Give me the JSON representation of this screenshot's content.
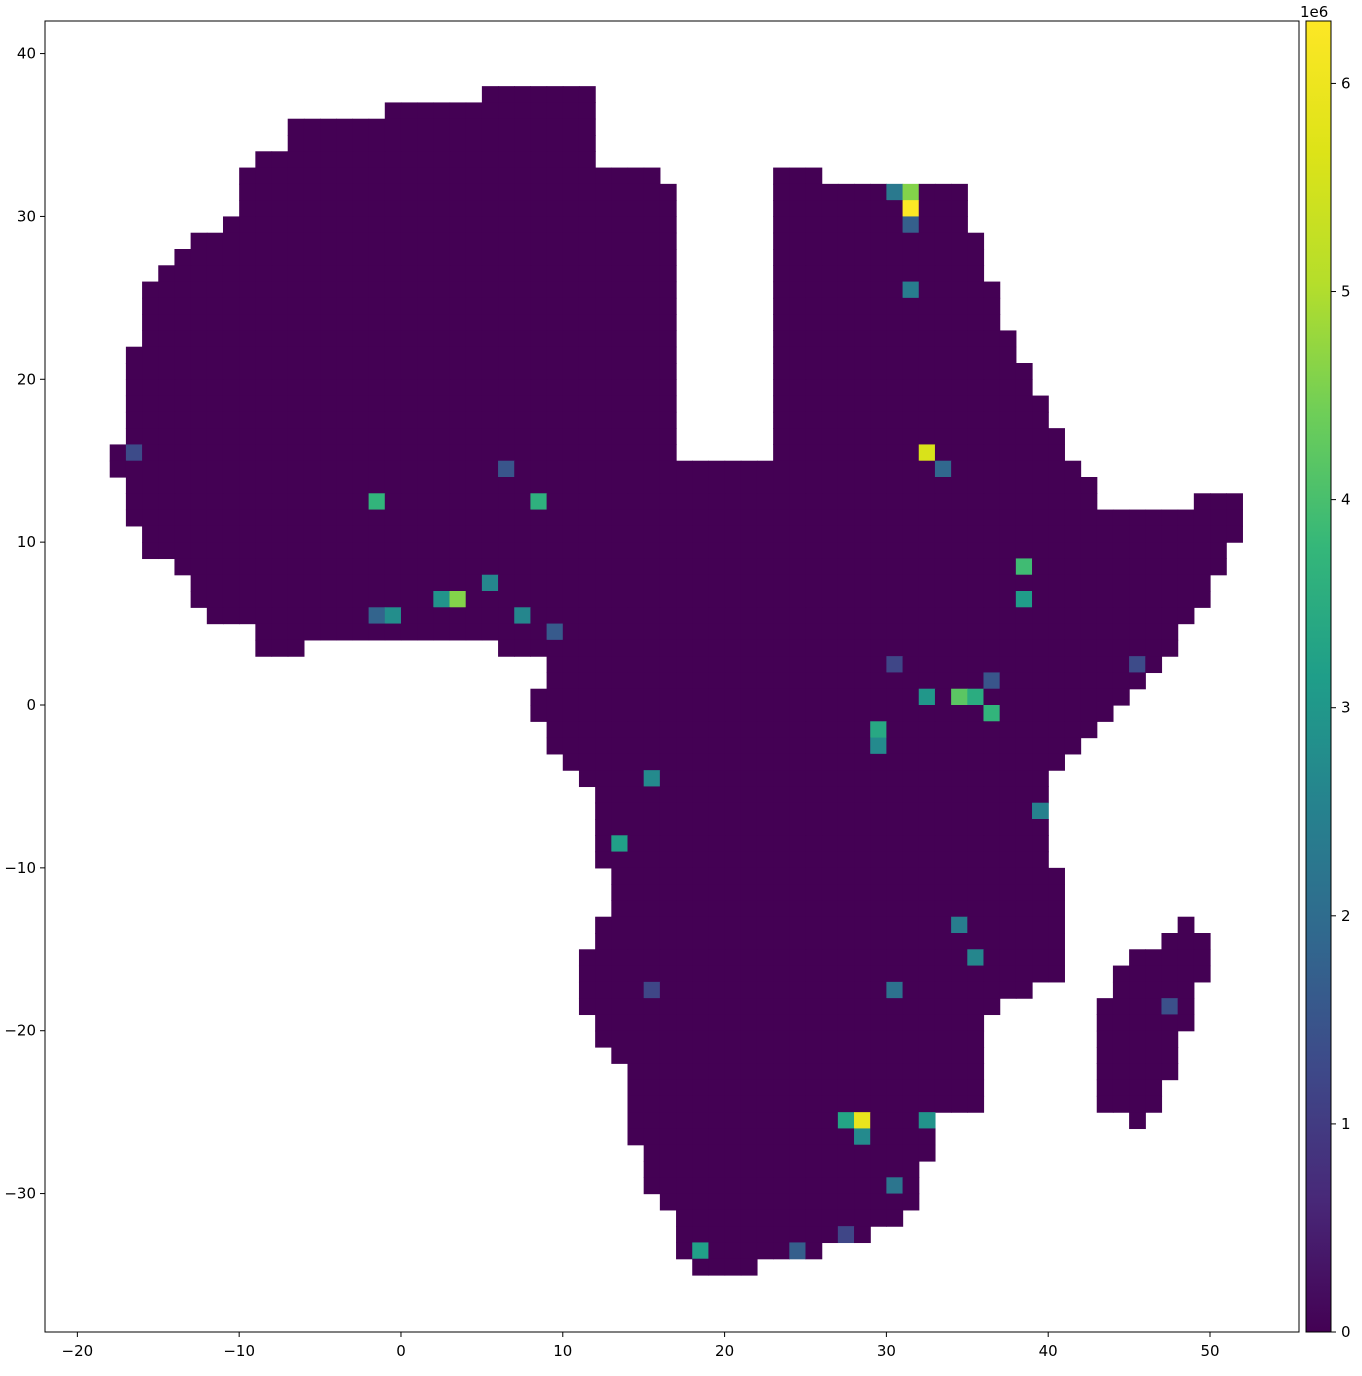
{
  "chart_data": {
    "type": "heatmap",
    "title": "",
    "xlabel": "",
    "ylabel": "",
    "xlim": [
      -22,
      55.5
    ],
    "ylim": [
      -38.5,
      42
    ],
    "x_ticks": [
      -20,
      -10,
      0,
      10,
      20,
      30,
      40,
      50
    ],
    "x_tick_labels": [
      "−20",
      "−10",
      "0",
      "10",
      "20",
      "30",
      "40",
      "50"
    ],
    "y_ticks": [
      40,
      30,
      20,
      10,
      0,
      -10,
      -20,
      -30
    ],
    "y_tick_labels": [
      "40",
      "30",
      "20",
      "10",
      "0",
      "−10",
      "−20",
      "−30"
    ],
    "grid": false,
    "colormap": "viridis",
    "colorbar": {
      "min": 0,
      "max": 6300000,
      "ticks": [
        0,
        1000000,
        2000000,
        3000000,
        4000000,
        5000000,
        6000000
      ],
      "tick_labels": [
        "0",
        "1",
        "2",
        "3",
        "4",
        "5",
        "6"
      ],
      "offset_label": "1e6"
    },
    "cell_size_deg": 1,
    "background_value": 0,
    "land_rows": [
      {
        "lat": 37,
        "lon_ranges": [
          [
            5,
            11
          ]
        ]
      },
      {
        "lat": 36,
        "lon_ranges": [
          [
            -1,
            11
          ]
        ]
      },
      {
        "lat": 35,
        "lon_ranges": [
          [
            -7,
            11
          ]
        ]
      },
      {
        "lat": 34,
        "lon_ranges": [
          [
            -7,
            11
          ]
        ]
      },
      {
        "lat": 33,
        "lon_ranges": [
          [
            -9,
            11
          ]
        ]
      },
      {
        "lat": 32,
        "lon_ranges": [
          [
            -10,
            15
          ],
          [
            23,
            25
          ]
        ]
      },
      {
        "lat": 31,
        "lon_ranges": [
          [
            -10,
            16
          ],
          [
            23,
            34
          ]
        ]
      },
      {
        "lat": 30,
        "lon_ranges": [
          [
            -10,
            16
          ],
          [
            23,
            34
          ]
        ]
      },
      {
        "lat": 29,
        "lon_ranges": [
          [
            -11,
            16
          ],
          [
            23,
            34
          ]
        ]
      },
      {
        "lat": 28,
        "lon_ranges": [
          [
            -13,
            16
          ],
          [
            23,
            35
          ]
        ]
      },
      {
        "lat": 27,
        "lon_ranges": [
          [
            -14,
            16
          ],
          [
            23,
            35
          ]
        ]
      },
      {
        "lat": 26,
        "lon_ranges": [
          [
            -15,
            16
          ],
          [
            23,
            35
          ]
        ]
      },
      {
        "lat": 25,
        "lon_ranges": [
          [
            -16,
            16
          ],
          [
            23,
            36
          ]
        ]
      },
      {
        "lat": 24,
        "lon_ranges": [
          [
            -16,
            16
          ],
          [
            23,
            36
          ]
        ]
      },
      {
        "lat": 23,
        "lon_ranges": [
          [
            -16,
            16
          ],
          [
            23,
            36
          ]
        ]
      },
      {
        "lat": 22,
        "lon_ranges": [
          [
            -16,
            16
          ],
          [
            23,
            37
          ]
        ]
      },
      {
        "lat": 21,
        "lon_ranges": [
          [
            -17,
            16
          ],
          [
            23,
            37
          ]
        ]
      },
      {
        "lat": 20,
        "lon_ranges": [
          [
            -17,
            16
          ],
          [
            23,
            38
          ]
        ]
      },
      {
        "lat": 19,
        "lon_ranges": [
          [
            -17,
            16
          ],
          [
            23,
            38
          ]
        ]
      },
      {
        "lat": 18,
        "lon_ranges": [
          [
            -17,
            16
          ],
          [
            23,
            39
          ]
        ]
      },
      {
        "lat": 17,
        "lon_ranges": [
          [
            -17,
            16
          ],
          [
            23,
            39
          ]
        ]
      },
      {
        "lat": 16,
        "lon_ranges": [
          [
            -17,
            16
          ],
          [
            23,
            40
          ]
        ]
      },
      {
        "lat": 15,
        "lon_ranges": [
          [
            -18,
            16
          ],
          [
            23,
            40
          ]
        ]
      },
      {
        "lat": 14,
        "lon_ranges": [
          [
            -18,
            41
          ]
        ]
      },
      {
        "lat": 13,
        "lon_ranges": [
          [
            -17,
            42
          ]
        ]
      },
      {
        "lat": 12,
        "lon_ranges": [
          [
            -17,
            42
          ],
          [
            49,
            51
          ]
        ]
      },
      {
        "lat": 11,
        "lon_ranges": [
          [
            -17,
            51
          ]
        ]
      },
      {
        "lat": 10,
        "lon_ranges": [
          [
            -16,
            51
          ]
        ]
      },
      {
        "lat": 9,
        "lon_ranges": [
          [
            -16,
            50
          ]
        ]
      },
      {
        "lat": 8,
        "lon_ranges": [
          [
            -14,
            50
          ]
        ]
      },
      {
        "lat": 7,
        "lon_ranges": [
          [
            -13,
            49
          ]
        ]
      },
      {
        "lat": 6,
        "lon_ranges": [
          [
            -13,
            49
          ]
        ]
      },
      {
        "lat": 5,
        "lon_ranges": [
          [
            -12,
            48
          ]
        ]
      },
      {
        "lat": 4,
        "lon_ranges": [
          [
            -9,
            47
          ]
        ]
      },
      {
        "lat": 3,
        "lon_ranges": [
          [
            -9,
            -7
          ],
          [
            6,
            47
          ]
        ]
      },
      {
        "lat": 2,
        "lon_ranges": [
          [
            9,
            46
          ]
        ]
      },
      {
        "lat": 1,
        "lon_ranges": [
          [
            9,
            45
          ]
        ]
      },
      {
        "lat": 0,
        "lon_ranges": [
          [
            8,
            44
          ]
        ]
      },
      {
        "lat": -1,
        "lon_ranges": [
          [
            8,
            43
          ]
        ]
      },
      {
        "lat": -2,
        "lon_ranges": [
          [
            9,
            42
          ]
        ]
      },
      {
        "lat": -3,
        "lon_ranges": [
          [
            9,
            41
          ]
        ]
      },
      {
        "lat": -4,
        "lon_ranges": [
          [
            10,
            40
          ]
        ]
      },
      {
        "lat": -5,
        "lon_ranges": [
          [
            11,
            39
          ]
        ]
      },
      {
        "lat": -6,
        "lon_ranges": [
          [
            12,
            39
          ]
        ]
      },
      {
        "lat": -7,
        "lon_ranges": [
          [
            12,
            39
          ]
        ]
      },
      {
        "lat": -8,
        "lon_ranges": [
          [
            12,
            39
          ]
        ]
      },
      {
        "lat": -9,
        "lon_ranges": [
          [
            12,
            39
          ]
        ]
      },
      {
        "lat": -10,
        "lon_ranges": [
          [
            12,
            39
          ]
        ]
      },
      {
        "lat": -11,
        "lon_ranges": [
          [
            13,
            40
          ]
        ]
      },
      {
        "lat": -12,
        "lon_ranges": [
          [
            13,
            40
          ]
        ]
      },
      {
        "lat": -13,
        "lon_ranges": [
          [
            13,
            40
          ]
        ]
      },
      {
        "lat": -14,
        "lon_ranges": [
          [
            12,
            40
          ],
          [
            48,
            48
          ]
        ]
      },
      {
        "lat": -15,
        "lon_ranges": [
          [
            12,
            40
          ],
          [
            47,
            49
          ]
        ]
      },
      {
        "lat": -16,
        "lon_ranges": [
          [
            11,
            40
          ],
          [
            45,
            49
          ]
        ]
      },
      {
        "lat": -17,
        "lon_ranges": [
          [
            11,
            40
          ],
          [
            44,
            49
          ]
        ]
      },
      {
        "lat": -18,
        "lon_ranges": [
          [
            11,
            38
          ],
          [
            44,
            48
          ]
        ]
      },
      {
        "lat": -19,
        "lon_ranges": [
          [
            11,
            36
          ],
          [
            43,
            48
          ]
        ]
      },
      {
        "lat": -20,
        "lon_ranges": [
          [
            12,
            35
          ],
          [
            43,
            48
          ]
        ]
      },
      {
        "lat": -21,
        "lon_ranges": [
          [
            12,
            35
          ],
          [
            43,
            47
          ]
        ]
      },
      {
        "lat": -22,
        "lon_ranges": [
          [
            13,
            35
          ],
          [
            43,
            47
          ]
        ]
      },
      {
        "lat": -23,
        "lon_ranges": [
          [
            14,
            35
          ],
          [
            43,
            47
          ]
        ]
      },
      {
        "lat": -24,
        "lon_ranges": [
          [
            14,
            35
          ],
          [
            43,
            46
          ]
        ]
      },
      {
        "lat": -25,
        "lon_ranges": [
          [
            14,
            35
          ],
          [
            43,
            46
          ]
        ]
      },
      {
        "lat": -26,
        "lon_ranges": [
          [
            14,
            32
          ],
          [
            45,
            45
          ]
        ]
      },
      {
        "lat": -27,
        "lon_ranges": [
          [
            14,
            32
          ]
        ]
      },
      {
        "lat": -28,
        "lon_ranges": [
          [
            15,
            32
          ]
        ]
      },
      {
        "lat": -29,
        "lon_ranges": [
          [
            15,
            31
          ]
        ]
      },
      {
        "lat": -30,
        "lon_ranges": [
          [
            15,
            31
          ]
        ]
      },
      {
        "lat": -31,
        "lon_ranges": [
          [
            16,
            31
          ]
        ]
      },
      {
        "lat": -32,
        "lon_ranges": [
          [
            17,
            30
          ]
        ]
      },
      {
        "lat": -33,
        "lon_ranges": [
          [
            17,
            28
          ]
        ]
      },
      {
        "lat": -34,
        "lon_ranges": [
          [
            17,
            25
          ]
        ]
      },
      {
        "lat": -35,
        "lon_ranges": [
          [
            18,
            21
          ]
        ]
      }
    ],
    "hotspots": [
      {
        "lon": 31,
        "lat": 30,
        "value": 6300000
      },
      {
        "lon": 28,
        "lat": -26,
        "value": 5900000
      },
      {
        "lon": 32,
        "lat": 15,
        "value": 5600000
      },
      {
        "lon": 31,
        "lat": 31,
        "value": 4600000
      },
      {
        "lon": 3,
        "lat": 6,
        "value": 4600000
      },
      {
        "lon": 34,
        "lat": 0,
        "value": 4200000
      },
      {
        "lon": 38,
        "lat": 8,
        "value": 3900000
      },
      {
        "lon": -2,
        "lat": 12,
        "value": 3700000
      },
      {
        "lon": 8,
        "lat": 12,
        "value": 3600000
      },
      {
        "lon": 36,
        "lat": -1,
        "value": 3700000
      },
      {
        "lon": 35,
        "lat": 0,
        "value": 3500000
      },
      {
        "lon": 29,
        "lat": -2,
        "value": 3400000
      },
      {
        "lon": 27,
        "lat": -26,
        "value": 3300000
      },
      {
        "lon": 18,
        "lat": -34,
        "value": 3200000
      },
      {
        "lon": 13,
        "lat": -9,
        "value": 3200000
      },
      {
        "lon": 30,
        "lat": 31,
        "value": 3200000
      },
      {
        "lon": 38,
        "lat": 6,
        "value": 3100000
      },
      {
        "lon": 32,
        "lat": 0,
        "value": 3000000
      },
      {
        "lon": 2,
        "lat": 6,
        "value": 2900000
      },
      {
        "lon": 32,
        "lat": -26,
        "value": 2900000
      },
      {
        "lon": -1,
        "lat": 5,
        "value": 2800000
      },
      {
        "lon": 15,
        "lat": -5,
        "value": 2700000
      },
      {
        "lon": 28,
        "lat": -27,
        "value": 2700000
      },
      {
        "lon": 29,
        "lat": -3,
        "value": 2700000
      },
      {
        "lon": 5,
        "lat": 7,
        "value": 2600000
      },
      {
        "lon": 7,
        "lat": 5,
        "value": 2600000
      },
      {
        "lon": 35,
        "lat": -16,
        "value": 2600000
      },
      {
        "lon": 39,
        "lat": -7,
        "value": 2500000
      },
      {
        "lon": 34,
        "lat": -14,
        "value": 2400000
      },
      {
        "lon": 31,
        "lat": 25,
        "value": 2400000
      },
      {
        "lon": 30,
        "lat": 31,
        "value": 2300000
      },
      {
        "lon": 30,
        "lat": -30,
        "value": 2200000
      },
      {
        "lon": 30,
        "lat": -18,
        "value": 2100000
      },
      {
        "lon": 33,
        "lat": 14,
        "value": 1900000
      },
      {
        "lon": -2,
        "lat": 5,
        "value": 1800000
      },
      {
        "lon": 31,
        "lat": 29,
        "value": 1700000
      },
      {
        "lon": 24,
        "lat": -34,
        "value": 1700000
      },
      {
        "lon": 9,
        "lat": 4,
        "value": 1600000
      },
      {
        "lon": 6,
        "lat": 14,
        "value": 1500000
      },
      {
        "lon": 36,
        "lat": 1,
        "value": 1500000
      },
      {
        "lon": 47,
        "lat": -19,
        "value": 1400000
      },
      {
        "lon": 45,
        "lat": 2,
        "value": 1300000
      },
      {
        "lon": -17,
        "lat": 15,
        "value": 1300000
      },
      {
        "lon": 15,
        "lat": -18,
        "value": 1200000
      },
      {
        "lon": 27,
        "lat": -33,
        "value": 1200000
      },
      {
        "lon": 30,
        "lat": 2,
        "value": 1200000
      }
    ]
  }
}
